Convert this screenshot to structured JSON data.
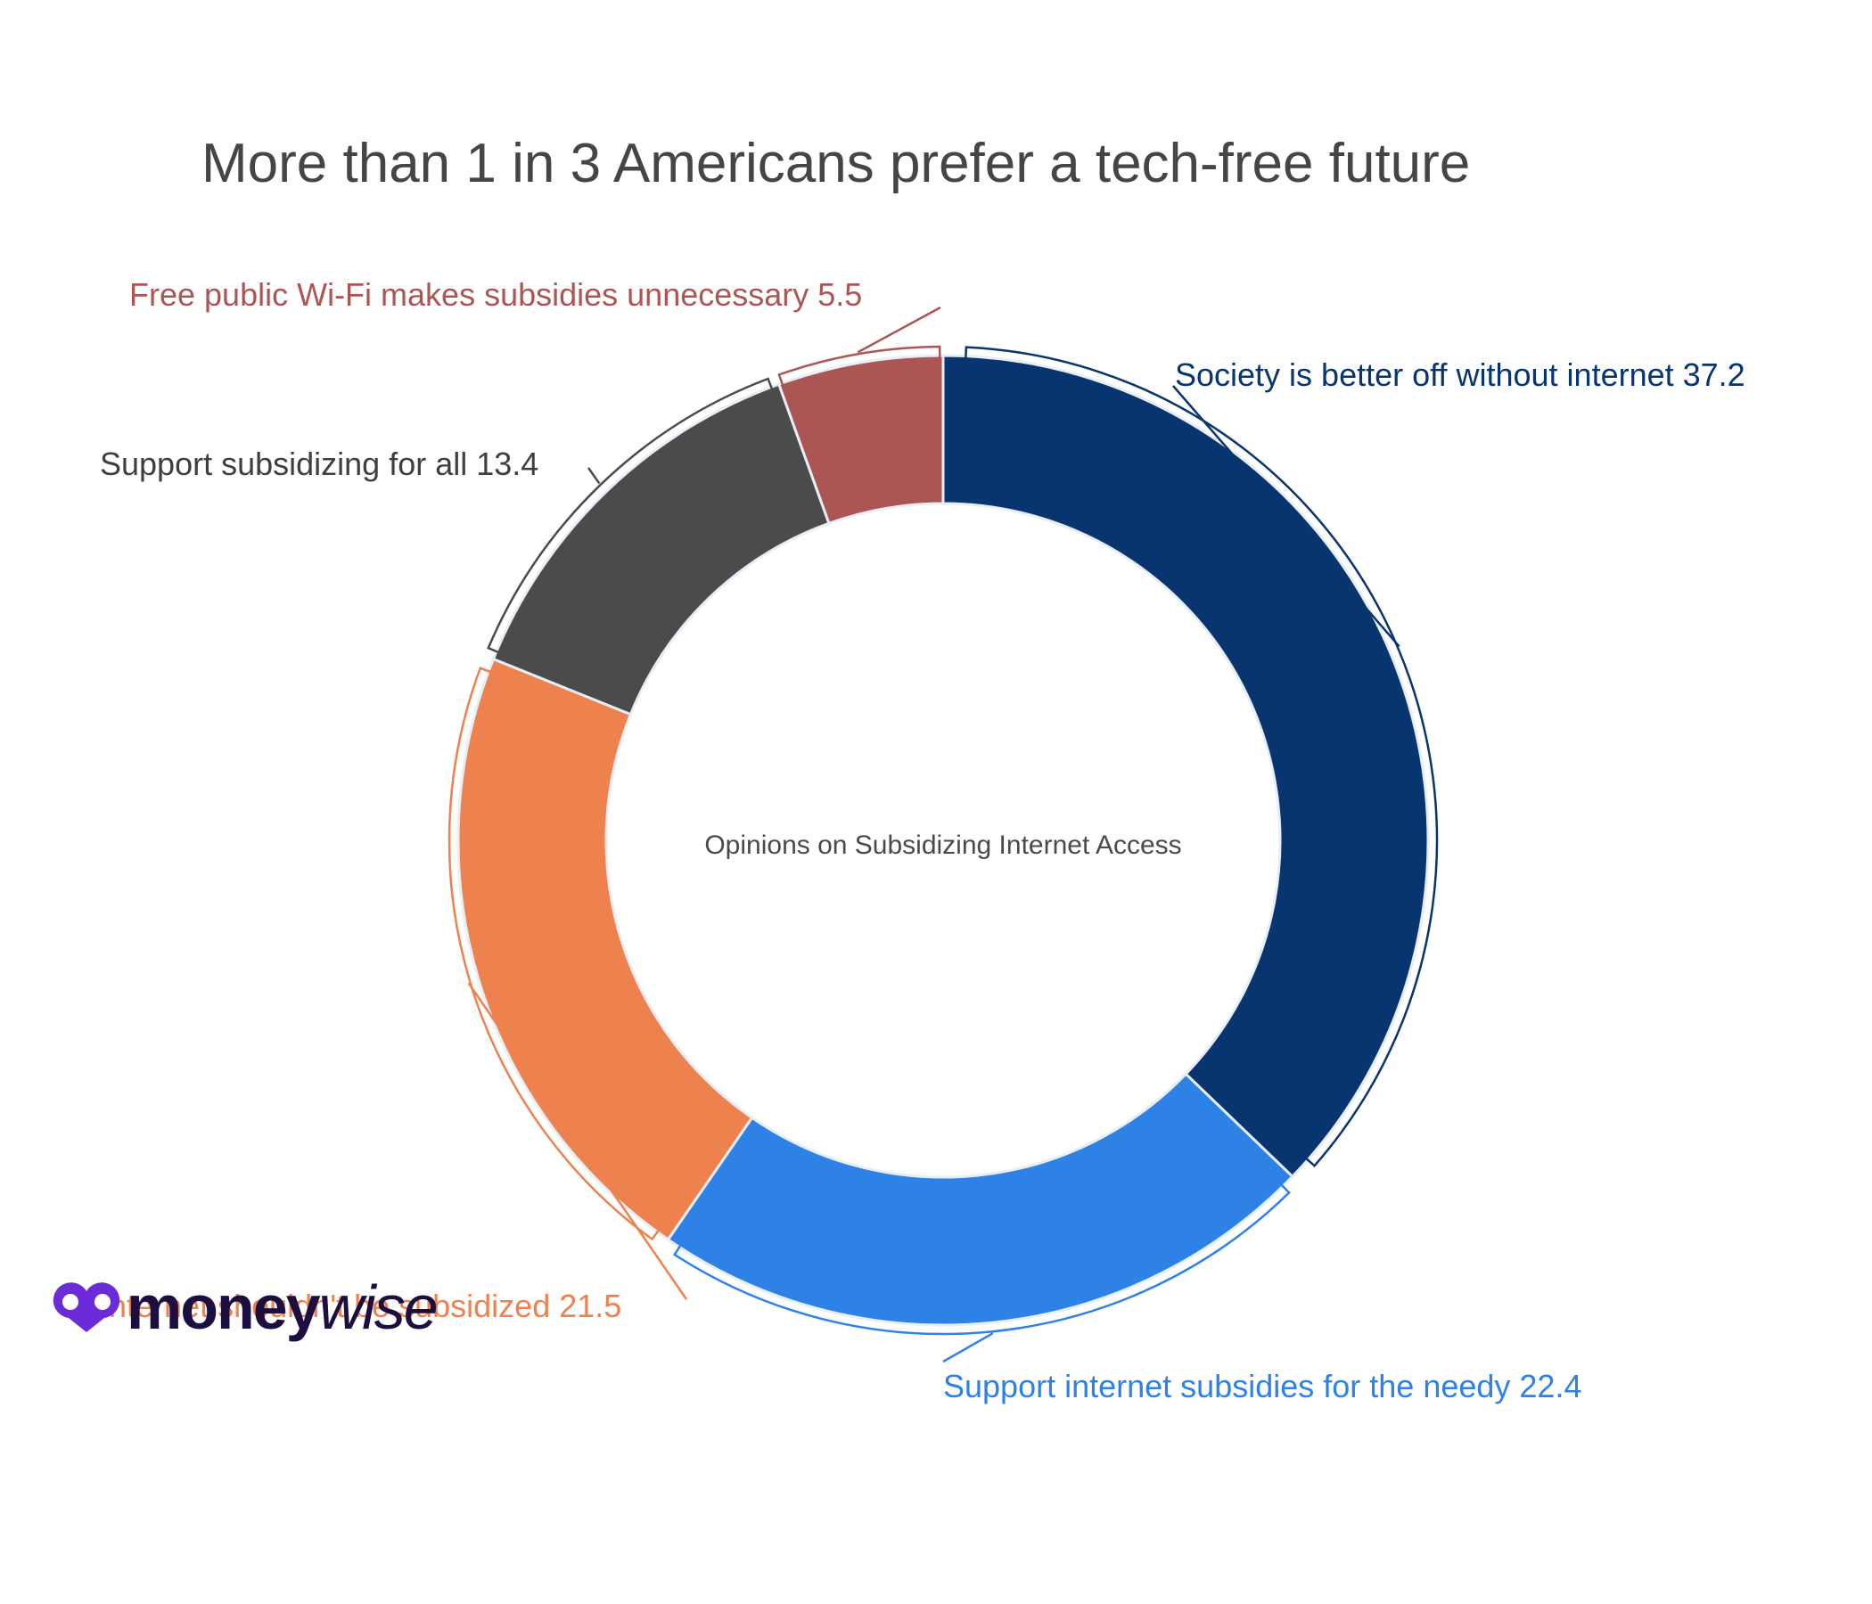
{
  "brand": {
    "name_part1": "money",
    "name_part2": "wise",
    "logo_color": "#6b2bd9"
  },
  "chart_data": {
    "type": "pie",
    "title": "More than 1 in 3 Americans prefer a tech-free future",
    "center_label": "Opinions on Subsidizing Internet Access",
    "hole": true,
    "slices": [
      {
        "label": "Society is better off without internet",
        "value": 37.2,
        "color": "#08356f"
      },
      {
        "label": "Support internet subsidies for the needy",
        "value": 22.4,
        "color": "#2e82e5"
      },
      {
        "label": "Internet shouldn't be subsidized",
        "value": 21.5,
        "color": "#ed824f"
      },
      {
        "label": "Support subsidizing for all",
        "value": 13.4,
        "color": "#4b4b4b"
      },
      {
        "label": "Free public Wi-Fi makes subsidies unnecessary",
        "value": 5.5,
        "color": "#ac5555"
      }
    ]
  }
}
